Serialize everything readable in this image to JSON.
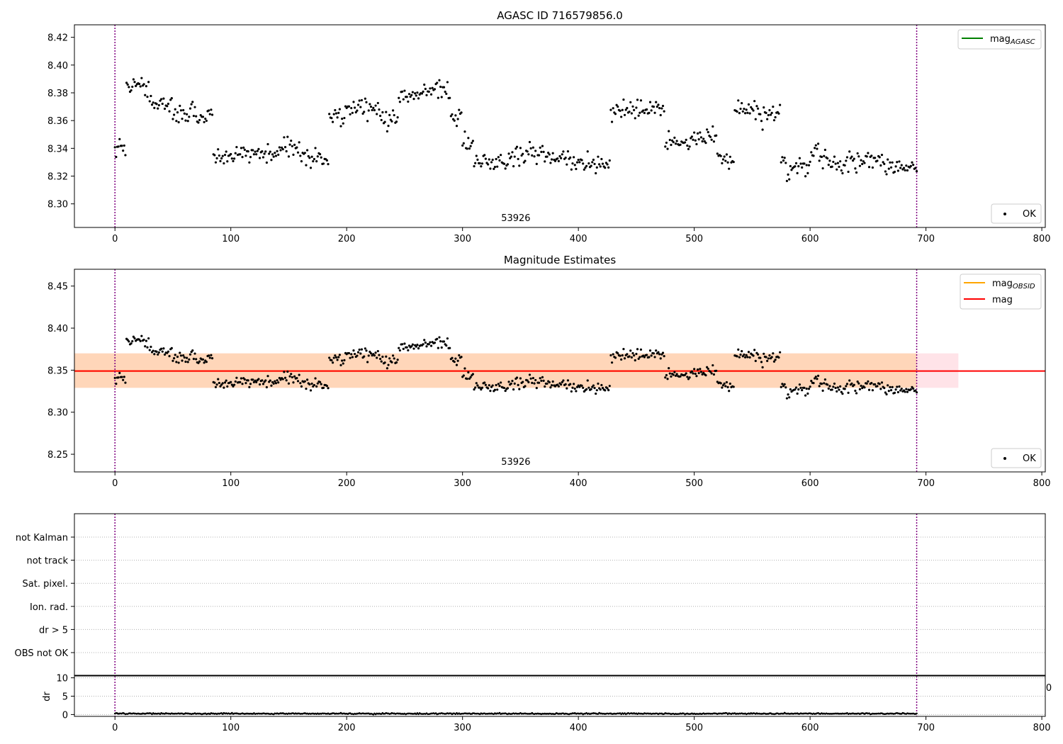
{
  "chart_data": [
    {
      "type": "scatter",
      "title": "AGASC ID 716579856.0",
      "xlim": [
        -35,
        803
      ],
      "ylim": [
        8.283,
        8.429
      ],
      "xticks": [
        0,
        100,
        200,
        300,
        400,
        500,
        600,
        700,
        800
      ],
      "yticks": [
        8.3,
        8.32,
        8.34,
        8.36,
        8.38,
        8.4,
        8.42
      ],
      "ytick_labels": [
        "8.30",
        "8.32",
        "8.34",
        "8.36",
        "8.38",
        "8.40",
        "8.42"
      ],
      "obs_markers_x": [
        0,
        692
      ],
      "annotation": {
        "text": "53926",
        "x": 346,
        "y": 8.2875
      },
      "legend_lines": [
        {
          "label_main": "mag",
          "label_sub": "AGASC",
          "color": "#008000"
        }
      ],
      "legend_points": [
        {
          "label": "OK",
          "color": "#000000"
        }
      ],
      "points_source": "star_series"
    },
    {
      "type": "scatter",
      "title": "Magnitude Estimates",
      "xlim": [
        -35,
        803
      ],
      "ylim": [
        8.229,
        8.47
      ],
      "xticks": [
        0,
        100,
        200,
        300,
        400,
        500,
        600,
        700,
        800
      ],
      "yticks": [
        8.25,
        8.3,
        8.35,
        8.4,
        8.45
      ],
      "ytick_labels": [
        "8.25",
        "8.30",
        "8.35",
        "8.40",
        "8.45"
      ],
      "obs_markers_x": [
        0,
        692
      ],
      "annotation": {
        "text": "53926",
        "x": 346,
        "y": 8.2375
      },
      "bands": [
        {
          "x": [
            -35,
            728
          ],
          "y": [
            8.329,
            8.37
          ],
          "color": "#ffc0cb",
          "opacity": 0.45
        },
        {
          "x": [
            -35,
            692
          ],
          "y": [
            8.329,
            8.37
          ],
          "color": "#ffa500",
          "opacity": 0.2
        }
      ],
      "hlines": [
        {
          "y": 8.349,
          "x": [
            -35,
            692
          ],
          "color": "#ffa500"
        },
        {
          "y": 8.349,
          "x": [
            -35,
            803
          ],
          "color": "#ff0000"
        }
      ],
      "legend_lines": [
        {
          "label_main": "mag",
          "label_sub": "OBSID",
          "color": "#ffa500"
        },
        {
          "label_main": "mag",
          "label_sub": "",
          "color": "#ff0000"
        }
      ],
      "legend_points": [
        {
          "label": "OK",
          "color": "#000000"
        }
      ],
      "points_source": "star_series"
    },
    {
      "type": "scatter",
      "title": "",
      "category_labels": [
        "not Kalman",
        "not track",
        "Sat. pixel.",
        "Ion. rad.",
        "dr > 5",
        "OBS not OK"
      ],
      "xlim": [
        -35,
        803
      ],
      "obs_markers_x": [
        0,
        692
      ],
      "grid": true
    },
    {
      "type": "scatter",
      "title": "",
      "ylabel": "dr",
      "xlim": [
        -35,
        803
      ],
      "ylim": [
        -0.5,
        10.5
      ],
      "xticks": [
        0,
        100,
        200,
        300,
        400,
        500,
        600,
        700,
        800
      ],
      "yticks": [
        0,
        5,
        10
      ],
      "ytick_labels": [
        "0",
        "5",
        "10"
      ],
      "obs_markers_x": [
        0,
        692
      ],
      "right_tick_fragment": "0",
      "dr_series": {
        "x_start": 0,
        "x_end": 692,
        "n": 693,
        "mean": 0.25,
        "amplitude": 0.15
      }
    }
  ],
  "star_series": {
    "x_start": 0,
    "x_end": 692,
    "segments": [
      [
        0,
        10,
        8.341
      ],
      [
        10,
        30,
        8.385
      ],
      [
        30,
        50,
        8.372
      ],
      [
        50,
        70,
        8.365
      ],
      [
        70,
        85,
        8.362
      ],
      [
        85,
        110,
        8.334
      ],
      [
        110,
        140,
        8.337
      ],
      [
        140,
        160,
        8.34
      ],
      [
        160,
        185,
        8.332
      ],
      [
        185,
        200,
        8.364
      ],
      [
        200,
        230,
        8.37
      ],
      [
        230,
        245,
        8.362
      ],
      [
        245,
        265,
        8.378
      ],
      [
        265,
        290,
        8.382
      ],
      [
        290,
        300,
        8.364
      ],
      [
        300,
        310,
        8.345
      ],
      [
        310,
        340,
        8.329
      ],
      [
        340,
        370,
        8.335
      ],
      [
        370,
        400,
        8.332
      ],
      [
        400,
        428,
        8.328
      ],
      [
        428,
        450,
        8.366
      ],
      [
        450,
        475,
        8.368
      ],
      [
        475,
        500,
        8.345
      ],
      [
        500,
        520,
        8.349
      ],
      [
        520,
        535,
        8.334
      ],
      [
        535,
        555,
        8.368
      ],
      [
        555,
        575,
        8.364
      ],
      [
        575,
        600,
        8.326
      ],
      [
        600,
        615,
        8.337
      ],
      [
        615,
        640,
        8.328
      ],
      [
        640,
        665,
        8.331
      ],
      [
        665,
        692,
        8.326
      ]
    ],
    "scatter": 0.006
  },
  "footer_tick_fragment": "0"
}
